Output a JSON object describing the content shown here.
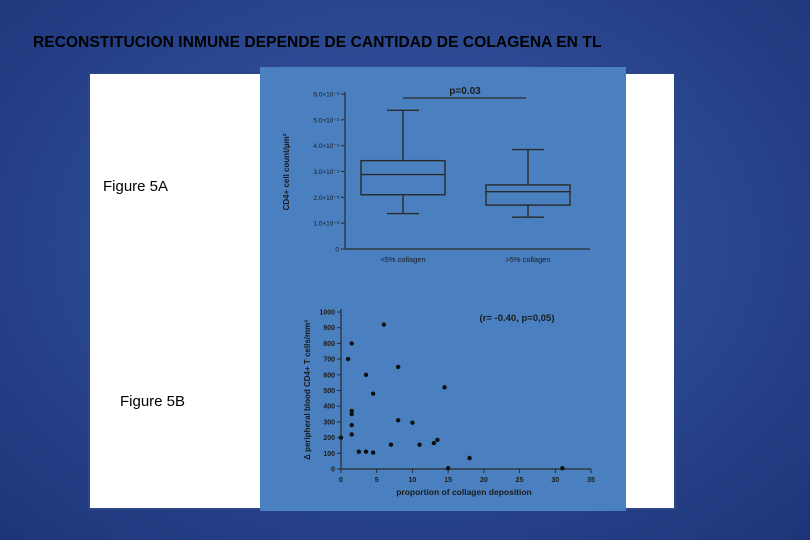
{
  "slide": {
    "title": "RECONSTITUCION INMUNE DEPENDE DE CANTIDAD DE COLAGENA  EN TL",
    "fig_a_label": "Figure 5A",
    "fig_b_label": "Figure 5B"
  },
  "chart_data": [
    {
      "type": "box",
      "title": "",
      "ylabel": "CD4+ cell count/µm²",
      "xlabel": "",
      "categories": [
        "<5% collagen",
        ">5% collagen"
      ],
      "ylim": [
        0,
        0.006
      ],
      "y_ticks": [
        0,
        0.001,
        0.002,
        0.003,
        0.004,
        0.005,
        0.006
      ],
      "y_tick_labels": [
        "0",
        "1.0×10⁻³",
        "2.0×10⁻³",
        "3.0×10⁻³",
        "4.0×10⁻³",
        "5.0×10⁻³",
        "6.0×10⁻³"
      ],
      "boxes": [
        {
          "min": 0.00137,
          "q1": 0.0021,
          "median": 0.00288,
          "q3": 0.00342,
          "max": 0.00537
        },
        {
          "min": 0.00123,
          "q1": 0.0017,
          "median": 0.00222,
          "q3": 0.00248,
          "max": 0.00385
        }
      ],
      "annotation": "p=0.03",
      "grid": false
    },
    {
      "type": "scatter",
      "title": "",
      "xlabel": "proportion of collagen deposition",
      "ylabel": "Δ peripheral blood CD4+ T cells/mm³",
      "xlim": [
        0,
        35
      ],
      "ylim": [
        0,
        1000
      ],
      "x_ticks": [
        0,
        5,
        10,
        15,
        20,
        25,
        30,
        35
      ],
      "y_ticks": [
        0,
        100,
        200,
        300,
        400,
        500,
        600,
        700,
        800,
        900,
        1000
      ],
      "annotation": "(r= -0.40, p=0,05)",
      "grid": false,
      "points": [
        {
          "x": 0,
          "y": 200
        },
        {
          "x": 1,
          "y": 700
        },
        {
          "x": 1.5,
          "y": 800
        },
        {
          "x": 1.5,
          "y": 370
        },
        {
          "x": 1.5,
          "y": 350
        },
        {
          "x": 1.5,
          "y": 280
        },
        {
          "x": 1.5,
          "y": 220
        },
        {
          "x": 2.5,
          "y": 110
        },
        {
          "x": 3.5,
          "y": 600
        },
        {
          "x": 3.5,
          "y": 110
        },
        {
          "x": 4.5,
          "y": 480
        },
        {
          "x": 4.5,
          "y": 105
        },
        {
          "x": 6,
          "y": 920
        },
        {
          "x": 7,
          "y": 155
        },
        {
          "x": 8,
          "y": 650
        },
        {
          "x": 8,
          "y": 310
        },
        {
          "x": 10,
          "y": 295
        },
        {
          "x": 11,
          "y": 155
        },
        {
          "x": 13,
          "y": 165
        },
        {
          "x": 13.5,
          "y": 185
        },
        {
          "x": 14.5,
          "y": 520
        },
        {
          "x": 15,
          "y": 5
        },
        {
          "x": 18,
          "y": 70
        },
        {
          "x": 31,
          "y": 5
        }
      ]
    }
  ]
}
